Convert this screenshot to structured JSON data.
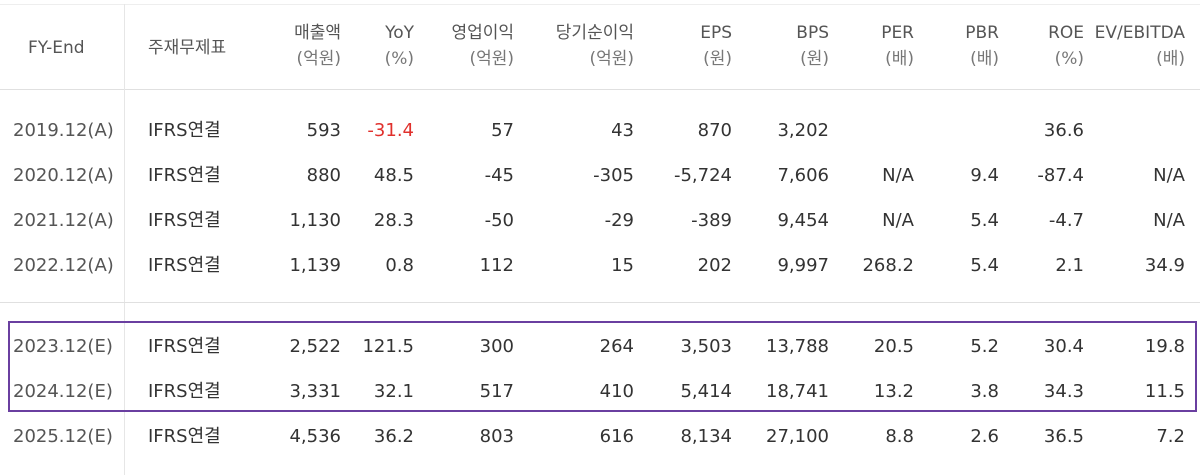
{
  "headers": {
    "fy": "FY-End",
    "basis": "주재무제표",
    "cols": [
      {
        "label": "매출액",
        "unit": "(억원)"
      },
      {
        "label": "YoY",
        "unit": "(%)"
      },
      {
        "label": "영업이익",
        "unit": "(억원)"
      },
      {
        "label": "당기순이익",
        "unit": "(억원)"
      },
      {
        "label": "EPS",
        "unit": "(원)"
      },
      {
        "label": "BPS",
        "unit": "(원)"
      },
      {
        "label": "PER",
        "unit": "(배)"
      },
      {
        "label": "PBR",
        "unit": "(배)"
      },
      {
        "label": "ROE",
        "unit": "(%)"
      },
      {
        "label": "EV/EBITDA",
        "unit": "(배)"
      }
    ]
  },
  "rows": [
    {
      "fy": "2019.12(A)",
      "basis": "IFRS연결",
      "values": [
        "593",
        "-31.4",
        "57",
        "43",
        "870",
        "3,202",
        "",
        "",
        "36.6",
        ""
      ]
    },
    {
      "fy": "2020.12(A)",
      "basis": "IFRS연결",
      "values": [
        "880",
        "48.5",
        "-45",
        "-305",
        "-5,724",
        "7,606",
        "N/A",
        "9.4",
        "-87.4",
        "N/A"
      ]
    },
    {
      "fy": "2021.12(A)",
      "basis": "IFRS연결",
      "values": [
        "1,130",
        "28.3",
        "-50",
        "-29",
        "-389",
        "9,454",
        "N/A",
        "5.4",
        "-4.7",
        "N/A"
      ]
    },
    {
      "fy": "2022.12(A)",
      "basis": "IFRS연결",
      "values": [
        "1,139",
        "0.8",
        "112",
        "15",
        "202",
        "9,997",
        "268.2",
        "5.4",
        "2.1",
        "34.9"
      ]
    },
    {
      "fy": "2023.12(E)",
      "basis": "IFRS연결",
      "values": [
        "2,522",
        "121.5",
        "300",
        "264",
        "3,503",
        "13,788",
        "20.5",
        "5.2",
        "30.4",
        "19.8"
      ]
    },
    {
      "fy": "2024.12(E)",
      "basis": "IFRS연결",
      "values": [
        "3,331",
        "32.1",
        "517",
        "410",
        "5,414",
        "18,741",
        "13.2",
        "3.8",
        "34.3",
        "11.5"
      ]
    },
    {
      "fy": "2025.12(E)",
      "basis": "IFRS연결",
      "values": [
        "4,536",
        "36.2",
        "803",
        "616",
        "8,134",
        "27,100",
        "8.8",
        "2.6",
        "36.5",
        "7.2"
      ]
    }
  ],
  "colors": {
    "negative_yoy": "#e0302c",
    "highlight_border": "#6a3fa0"
  }
}
